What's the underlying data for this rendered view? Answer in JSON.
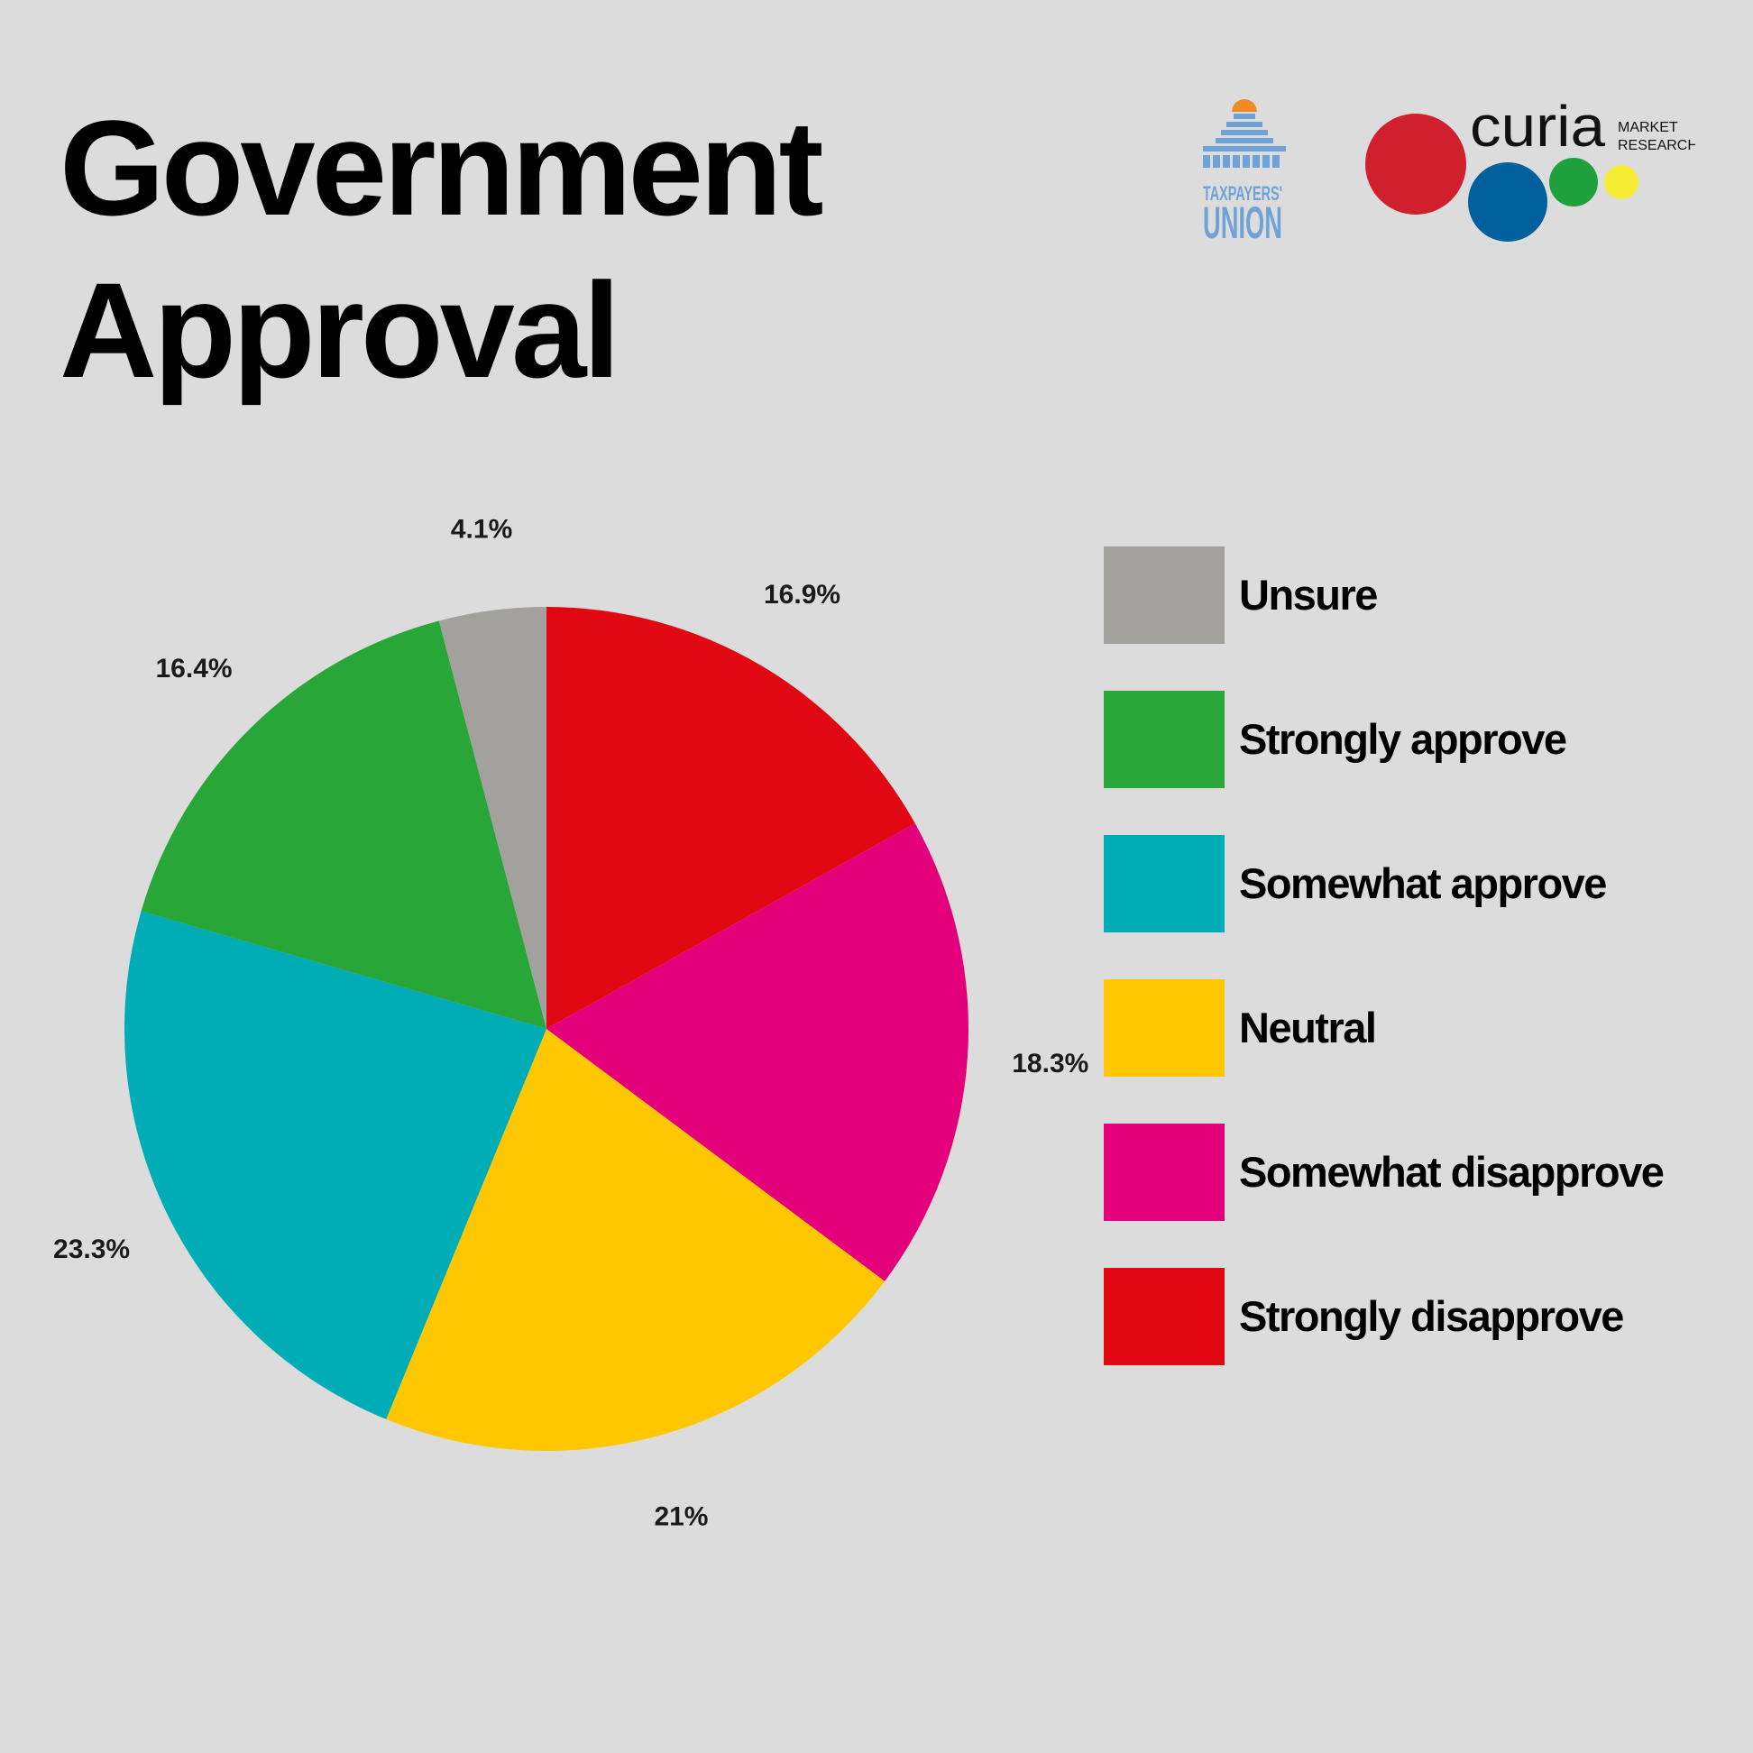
{
  "title": {
    "line1": "Government",
    "line2": "Approval"
  },
  "logos": {
    "taxpayers_union": {
      "line1": "TAXPAYERS'",
      "line2": "UNION",
      "color": "#6fa3d8",
      "accent": "#f08a24"
    },
    "curia": {
      "name": "curia",
      "tagline_line1": "MARKET",
      "tagline_line2": "RESEARCH",
      "dot_colors": [
        "#d0202e",
        "#00609c",
        "#1ea03c",
        "#f5ec33"
      ]
    }
  },
  "chart_data": {
    "type": "pie",
    "title": "Government Approval",
    "start_angle_deg": 0,
    "direction": "clockwise",
    "slices": [
      {
        "label": "Strongly disapprove",
        "value": 16.9,
        "display": "16.9%",
        "color": "#e10811"
      },
      {
        "label": "Somewhat disapprove",
        "value": 18.3,
        "display": "18.3%",
        "color": "#e4007a"
      },
      {
        "label": "Neutral",
        "value": 21,
        "display": "21%",
        "color": "#fec700"
      },
      {
        "label": "Somewhat approve",
        "value": 23.3,
        "display": "23.3%",
        "color": "#00adb6"
      },
      {
        "label": "Strongly approve",
        "value": 16.4,
        "display": "16.4%",
        "color": "#28a638"
      },
      {
        "label": "Unsure",
        "value": 4.1,
        "display": "4.1%",
        "color": "#a2a19e"
      }
    ],
    "legend_order": [
      "Unsure",
      "Strongly approve",
      "Somewhat approve",
      "Neutral",
      "Somewhat disapprove",
      "Strongly disapprove"
    ],
    "legend_placement": "right"
  }
}
